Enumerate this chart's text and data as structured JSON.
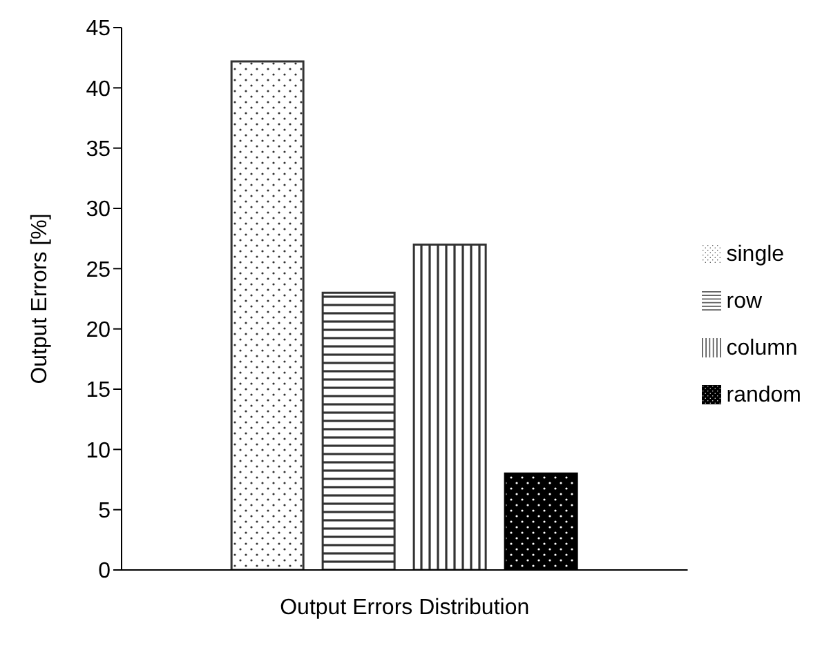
{
  "chart_data": {
    "type": "bar",
    "xlabel": "Output Errors Distribution",
    "ylabel": "Output Errors [%]",
    "categories": [
      null
    ],
    "series": [
      {
        "name": "single",
        "color": "#333333",
        "values": [
          42.2
        ]
      },
      {
        "name": "row",
        "color": "#333333",
        "values": [
          23
        ]
      },
      {
        "name": "column",
        "color": "#333333",
        "values": [
          27
        ]
      },
      {
        "name": "random",
        "color": "#000000",
        "values": [
          8
        ]
      }
    ],
    "ylim": [
      0,
      45
    ],
    "yticks": [
      0,
      5,
      10,
      15,
      20,
      25,
      30,
      35,
      40,
      45
    ],
    "legend": "right"
  }
}
